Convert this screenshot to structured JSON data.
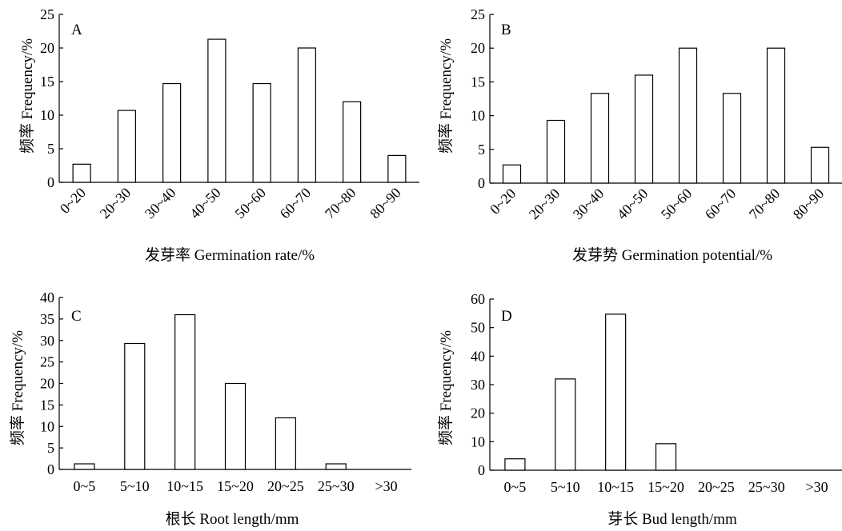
{
  "figure": {
    "panels": [
      {
        "letter": "A",
        "xlabel": "发芽率 Germination rate/%",
        "ylabel": "频率 Frequency/%"
      },
      {
        "letter": "B",
        "xlabel": "发芽势 Germination potential/%",
        "ylabel": "频率 Frequency/%"
      },
      {
        "letter": "C",
        "xlabel": "根长 Root length/mm",
        "ylabel": "频率 Frequency/%"
      },
      {
        "letter": "D",
        "xlabel": "芽长 Bud length/mm",
        "ylabel": "频率 Frequency/%"
      }
    ]
  },
  "chart_data": [
    {
      "type": "bar",
      "title": "A",
      "xlabel": "发芽率 Germination rate/%",
      "ylabel": "频率 Frequency/%",
      "categories": [
        "0~20",
        "20~30",
        "30~40",
        "40~50",
        "50~60",
        "60~70",
        "70~80",
        "80~90"
      ],
      "values": [
        2.7,
        10.7,
        14.7,
        21.3,
        14.7,
        20.0,
        12.0,
        4.0
      ],
      "ylim": [
        0,
        25
      ],
      "yticks": [
        0,
        5,
        10,
        15,
        20,
        25
      ],
      "xtick_rotation": "rotated",
      "grid": false,
      "legend": "none"
    },
    {
      "type": "bar",
      "title": "B",
      "xlabel": "发芽势 Germination potential/%",
      "ylabel": "频率 Frequency/%",
      "categories": [
        "0~20",
        "20~30",
        "30~40",
        "40~50",
        "50~60",
        "60~70",
        "70~80",
        "80~90"
      ],
      "values": [
        2.7,
        9.3,
        13.3,
        16.0,
        20.0,
        13.3,
        20.0,
        5.3
      ],
      "ylim": [
        0,
        25
      ],
      "yticks": [
        0,
        5,
        10,
        15,
        20,
        25
      ],
      "xtick_rotation": "rotated",
      "grid": false,
      "legend": "none"
    },
    {
      "type": "bar",
      "title": "C",
      "xlabel": "根长 Root length/mm",
      "ylabel": "频率 Frequency/%",
      "categories": [
        "0~5",
        "5~10",
        "10~15",
        "15~20",
        "20~25",
        "25~30",
        ">30"
      ],
      "values": [
        1.3,
        29.3,
        36.0,
        20.0,
        12.0,
        1.3,
        0
      ],
      "ylim": [
        0,
        40
      ],
      "yticks": [
        0,
        5,
        10,
        15,
        20,
        25,
        30,
        35,
        40
      ],
      "xtick_rotation": "horizontal",
      "grid": false,
      "legend": "none"
    },
    {
      "type": "bar",
      "title": "D",
      "xlabel": "芽长 Bud length/mm",
      "ylabel": "频率 Frequency/%",
      "categories": [
        "0~5",
        "5~10",
        "10~15",
        "15~20",
        "20~25",
        "25~30",
        ">30"
      ],
      "values": [
        4.0,
        32.0,
        54.7,
        9.3,
        0,
        0,
        0
      ],
      "ylim": [
        0,
        60
      ],
      "yticks": [
        0,
        10,
        20,
        30,
        40,
        50,
        60
      ],
      "xtick_rotation": "horizontal",
      "grid": false,
      "legend": "none"
    }
  ]
}
